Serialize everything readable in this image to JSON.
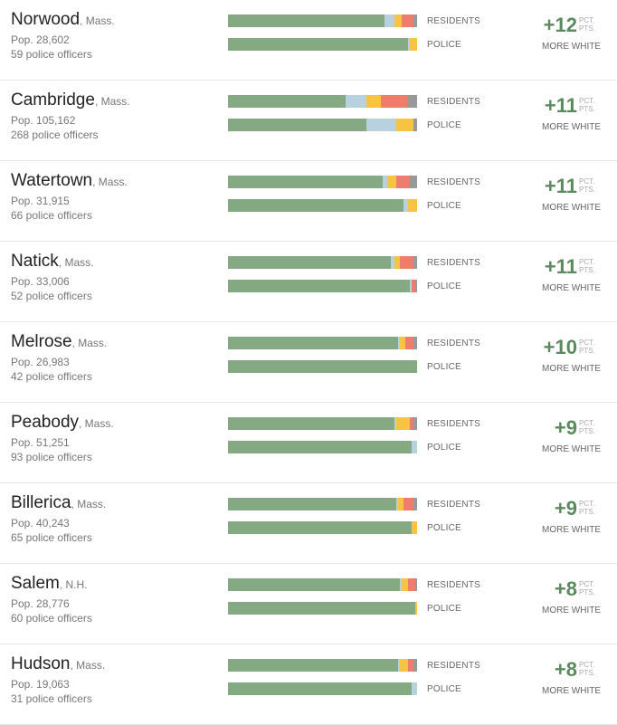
{
  "colors": {
    "white": "#85a982",
    "black": "#b8d1de",
    "hispanic": "#f6c343",
    "asian": "#ef7d6d",
    "other": "#999999",
    "diff_value": "#5a8a5e"
  },
  "labels": {
    "residents": "RESIDENTS",
    "police": "POLICE",
    "pct_line1": "PCT.",
    "pct_line2": "PTS.",
    "more_white": "MORE WHITE"
  },
  "chart_data": {
    "type": "bar",
    "stacked": true,
    "segment_order": [
      "white",
      "black",
      "hispanic",
      "asian",
      "other"
    ],
    "rows": [
      {
        "city": "Norwood",
        "state": ", Mass.",
        "pop": "Pop. 28,602",
        "officers": "59 police officers",
        "residents": [
          83,
          5,
          4,
          6,
          2
        ],
        "police": [
          95,
          1,
          4,
          0,
          0
        ],
        "diff": "+12"
      },
      {
        "city": "Cambridge",
        "state": ", Mass.",
        "pop": "Pop. 105,162",
        "officers": "268 police officers",
        "residents": [
          62,
          11,
          8,
          14,
          5
        ],
        "police": [
          73,
          16,
          9,
          0,
          2
        ],
        "diff": "+11"
      },
      {
        "city": "Watertown",
        "state": ", Mass.",
        "pop": "Pop. 31,915",
        "officers": "66 police officers",
        "residents": [
          82,
          2,
          5,
          7,
          4
        ],
        "police": [
          93,
          2,
          5,
          0,
          0
        ],
        "diff": "+11"
      },
      {
        "city": "Natick",
        "state": ", Mass.",
        "pop": "Pop. 33,006",
        "officers": "52 police officers",
        "residents": [
          86,
          2,
          3,
          7,
          2
        ],
        "police": [
          96,
          1,
          0,
          2,
          1
        ],
        "diff": "+11"
      },
      {
        "city": "Melrose",
        "state": ", Mass.",
        "pop": "Pop. 26,983",
        "officers": "42 police officers",
        "residents": [
          90,
          1,
          3,
          4,
          2
        ],
        "police": [
          100,
          0,
          0,
          0,
          0
        ],
        "diff": "+10"
      },
      {
        "city": "Peabody",
        "state": ", Mass.",
        "pop": "Pop. 51,251",
        "officers": "93 police officers",
        "residents": [
          88,
          1,
          7,
          2,
          2
        ],
        "police": [
          97,
          3,
          0,
          0,
          0
        ],
        "diff": "+9"
      },
      {
        "city": "Billerica",
        "state": ", Mass.",
        "pop": "Pop. 40,243",
        "officers": "65 police officers",
        "residents": [
          89,
          1,
          3,
          5,
          2
        ],
        "police": [
          97,
          0,
          3,
          0,
          0
        ],
        "diff": "+9"
      },
      {
        "city": "Salem",
        "state": ", N.H.",
        "pop": "Pop. 28,776",
        "officers": "60 police officers",
        "residents": [
          91,
          1,
          3,
          4,
          1
        ],
        "police": [
          99,
          0,
          1,
          0,
          0
        ],
        "diff": "+8"
      },
      {
        "city": "Hudson",
        "state": ", Mass.",
        "pop": "Pop. 19,063",
        "officers": "31 police officers",
        "residents": [
          90,
          1,
          4,
          3,
          2
        ],
        "police": [
          97,
          3,
          0,
          0,
          0
        ],
        "diff": "+8"
      }
    ]
  }
}
